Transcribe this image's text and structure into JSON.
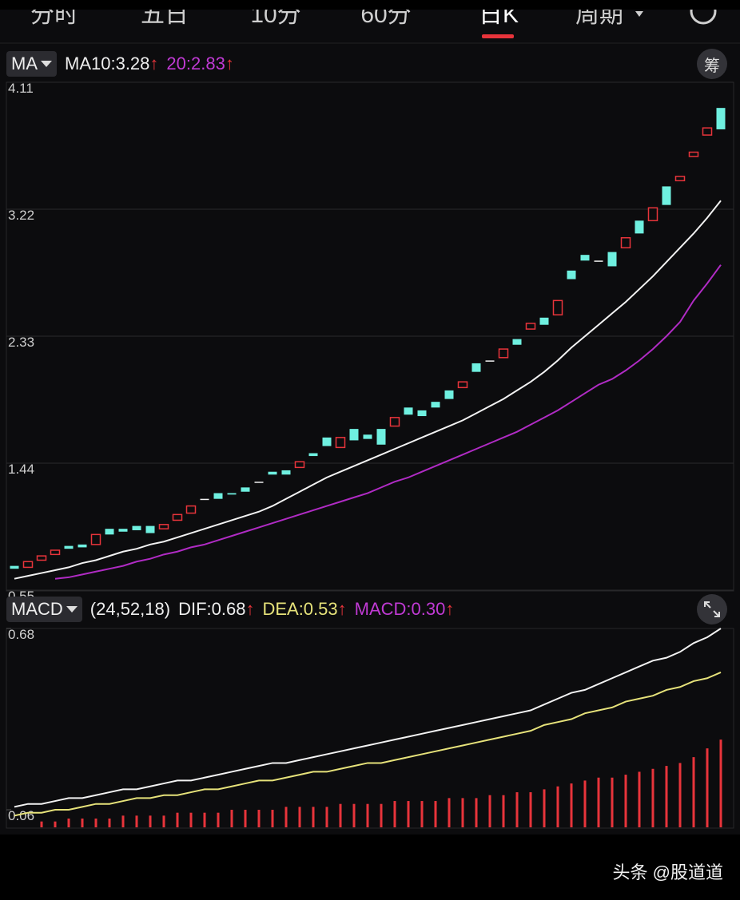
{
  "tabs": [
    "分时",
    "五日",
    "10分",
    "60分",
    "日K",
    "周期"
  ],
  "ma_header": {
    "selector": "MA",
    "ma10": "MA10:3.28",
    "ma20": "20:2.83",
    "arrow": "↑",
    "button": "筹"
  },
  "macd_header": {
    "selector": "MACD",
    "params": "(24,52,18)",
    "dif": "DIF:0.68",
    "dea": "DEA:0.53",
    "macd": "MACD:0.30",
    "arrow": "↑"
  },
  "watermark": "头条 @股道道",
  "chart_data": [
    {
      "type": "candlestick",
      "up_color": "#e8343b",
      "down_color": "#6ff0e0",
      "ylim": [
        0.55,
        4.11
      ],
      "yticks": [
        0.55,
        1.44,
        2.33,
        3.22,
        4.11
      ],
      "grid": true,
      "open": [
        0.72,
        0.71,
        0.76,
        0.8,
        0.86,
        0.87,
        0.87,
        0.98,
        0.98,
        1.0,
        1.0,
        0.98,
        1.04,
        1.09,
        1.19,
        1.23,
        1.23,
        1.27,
        1.31,
        1.38,
        1.39,
        1.41,
        1.51,
        1.62,
        1.55,
        1.68,
        1.64,
        1.68,
        1.7,
        1.83,
        1.81,
        1.87,
        1.95,
        1.97,
        2.14,
        2.16,
        2.18,
        2.31,
        2.38,
        2.46,
        2.48,
        2.79,
        2.9,
        2.86,
        2.92,
        2.95,
        3.14,
        3.14,
        3.38,
        3.42,
        3.59,
        3.74,
        3.93
      ],
      "close": [
        0.7,
        0.75,
        0.79,
        0.83,
        0.84,
        0.85,
        0.94,
        0.94,
        0.96,
        0.97,
        0.95,
        1.01,
        1.08,
        1.14,
        1.19,
        1.19,
        1.22,
        1.24,
        1.31,
        1.36,
        1.36,
        1.45,
        1.49,
        1.56,
        1.62,
        1.6,
        1.61,
        1.57,
        1.76,
        1.78,
        1.77,
        1.83,
        1.89,
        2.01,
        2.08,
        2.16,
        2.24,
        2.27,
        2.42,
        2.41,
        2.58,
        2.73,
        2.86,
        2.86,
        2.82,
        3.02,
        3.05,
        3.23,
        3.25,
        3.45,
        3.62,
        3.79,
        3.78
      ],
      "series": [
        {
          "color": "#f2f2f2",
          "values": [
            0.63,
            0.65,
            0.67,
            0.69,
            0.71,
            0.74,
            0.76,
            0.79,
            0.82,
            0.84,
            0.87,
            0.89,
            0.92,
            0.95,
            0.98,
            1.01,
            1.04,
            1.07,
            1.1,
            1.14,
            1.19,
            1.24,
            1.29,
            1.34,
            1.38,
            1.42,
            1.46,
            1.5,
            1.54,
            1.58,
            1.62,
            1.66,
            1.7,
            1.74,
            1.79,
            1.84,
            1.89,
            1.95,
            2.01,
            2.08,
            2.16,
            2.25,
            2.33,
            2.41,
            2.49,
            2.57,
            2.66,
            2.75,
            2.85,
            2.95,
            3.05,
            3.16,
            3.28
          ]
        },
        {
          "color": "#b02bc4",
          "values": [
            null,
            null,
            null,
            0.63,
            0.64,
            0.66,
            0.68,
            0.7,
            0.72,
            0.75,
            0.77,
            0.8,
            0.82,
            0.85,
            0.87,
            0.9,
            0.93,
            0.96,
            0.99,
            1.02,
            1.05,
            1.08,
            1.11,
            1.14,
            1.17,
            1.2,
            1.23,
            1.27,
            1.31,
            1.34,
            1.38,
            1.42,
            1.46,
            1.5,
            1.54,
            1.58,
            1.62,
            1.66,
            1.71,
            1.76,
            1.81,
            1.87,
            1.93,
            1.99,
            2.03,
            2.09,
            2.16,
            2.24,
            2.33,
            2.43,
            2.58,
            2.7,
            2.83
          ]
        }
      ]
    },
    {
      "type": "macd",
      "ylim": [
        0,
        0.68
      ],
      "yticks": [
        0.06,
        0.68
      ],
      "hist_color": "#e8343b",
      "histogram": [
        null,
        null,
        0.02,
        0.02,
        0.03,
        0.03,
        0.03,
        0.03,
        0.04,
        0.04,
        0.04,
        0.04,
        0.05,
        0.05,
        0.05,
        0.05,
        0.06,
        0.06,
        0.06,
        0.06,
        0.07,
        0.07,
        0.07,
        0.07,
        0.08,
        0.08,
        0.08,
        0.08,
        0.09,
        0.09,
        0.09,
        0.09,
        0.1,
        0.1,
        0.1,
        0.11,
        0.11,
        0.12,
        0.12,
        0.13,
        0.14,
        0.15,
        0.16,
        0.17,
        0.17,
        0.18,
        0.19,
        0.2,
        0.21,
        0.22,
        0.24,
        0.27,
        0.3
      ],
      "series": [
        {
          "color": "#f2f2f2",
          "values": [
            0.07,
            0.08,
            0.08,
            0.09,
            0.1,
            0.1,
            0.11,
            0.12,
            0.13,
            0.13,
            0.14,
            0.15,
            0.16,
            0.16,
            0.17,
            0.18,
            0.19,
            0.2,
            0.21,
            0.22,
            0.22,
            0.23,
            0.24,
            0.25,
            0.26,
            0.27,
            0.28,
            0.29,
            0.3,
            0.31,
            0.32,
            0.33,
            0.34,
            0.35,
            0.36,
            0.37,
            0.38,
            0.39,
            0.4,
            0.42,
            0.44,
            0.46,
            0.47,
            0.49,
            0.51,
            0.53,
            0.55,
            0.57,
            0.58,
            0.6,
            0.63,
            0.65,
            0.68
          ]
        },
        {
          "color": "#e6e27a",
          "values": [
            0.04,
            0.05,
            0.05,
            0.06,
            0.06,
            0.07,
            0.08,
            0.08,
            0.09,
            0.1,
            0.1,
            0.11,
            0.11,
            0.12,
            0.13,
            0.13,
            0.14,
            0.15,
            0.16,
            0.16,
            0.17,
            0.18,
            0.19,
            0.19,
            0.2,
            0.21,
            0.22,
            0.22,
            0.23,
            0.24,
            0.25,
            0.26,
            0.27,
            0.28,
            0.29,
            0.3,
            0.31,
            0.32,
            0.33,
            0.35,
            0.36,
            0.37,
            0.39,
            0.4,
            0.41,
            0.43,
            0.44,
            0.45,
            0.47,
            0.48,
            0.5,
            0.51,
            0.53
          ]
        }
      ]
    }
  ]
}
